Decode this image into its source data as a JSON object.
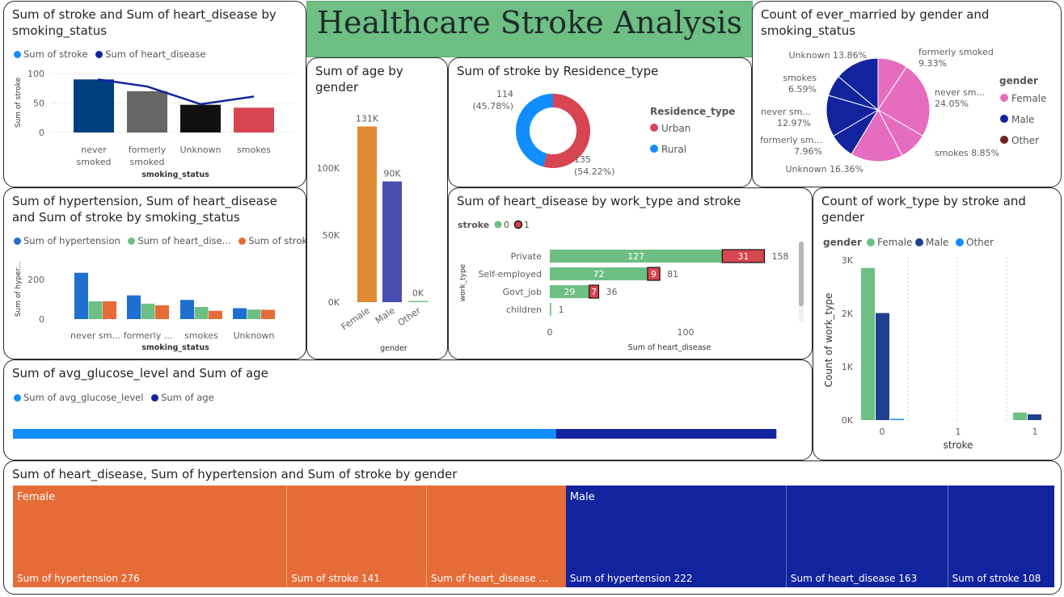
{
  "page": {
    "title": "Healthcare Stroke Analysis"
  },
  "colors": {
    "light_blue": "#118dff",
    "navy": "#12239e",
    "orange": "#e66c37",
    "green": "#6dbf84",
    "red": "#d64550",
    "pink": "#e56cbf",
    "gray": "#666666",
    "black": "#111111",
    "dark_blue": "#003f7f",
    "dark_red": "#6b2323",
    "bar_orange": "#e08a32",
    "bar_purple": "#4a4db2"
  },
  "v1": {
    "title": "Sum of stroke and Sum of heart_disease by smoking_status",
    "legend": [
      "Sum of stroke",
      "Sum of heart_disease"
    ],
    "y_label": "Sum of stroke",
    "x_label": "smoking_status",
    "y_ticks": [
      "100",
      "50",
      "0"
    ],
    "categories": [
      "never smoked",
      "formerly smoked",
      "Unknown",
      "smokes"
    ],
    "cat_lines": [
      [
        "never",
        "smoked"
      ],
      [
        "formerly",
        "smoked"
      ],
      [
        "Unknown",
        ""
      ],
      [
        "smokes",
        ""
      ]
    ],
    "chart_data": {
      "type": "bar",
      "categories": [
        "never smoked",
        "formerly smoked",
        "Unknown",
        "smokes"
      ],
      "series": [
        {
          "name": "Sum of stroke",
          "type": "bar",
          "values": [
            90,
            70,
            47,
            42
          ]
        },
        {
          "name": "Sum of heart_disease",
          "type": "line",
          "values": [
            90,
            78,
            48,
            61
          ]
        }
      ],
      "ylim": [
        0,
        110
      ]
    }
  },
  "v2": {
    "title": "Sum of age by gender",
    "x_label": "gender",
    "y_ticks": [
      "100K",
      "50K",
      "0K"
    ],
    "data_labels": [
      "131K",
      "90K",
      "0K"
    ],
    "categories": [
      "Female",
      "Male",
      "Other"
    ],
    "chart_data": {
      "type": "bar",
      "categories": [
        "Female",
        "Male",
        "Other"
      ],
      "values": [
        131000,
        90000,
        0
      ],
      "ylim": [
        0,
        140000
      ]
    }
  },
  "v3": {
    "title": "Sum of stroke by Residence_type",
    "legend_title": "Residence_type",
    "legend": [
      "Urban",
      "Rural"
    ],
    "label_rural": [
      "114",
      "(45.78%)"
    ],
    "label_urban": [
      "135",
      "(54.22%)"
    ],
    "chart_data": {
      "type": "pie",
      "labels": [
        "Urban",
        "Rural"
      ],
      "values": [
        135,
        114
      ],
      "percent": [
        54.22,
        45.78
      ]
    }
  },
  "v4": {
    "title": "Count of ever_married by gender and smoking_status",
    "legend_title": "gender",
    "legend": [
      "Female",
      "Male",
      "Other"
    ],
    "slice_labels": [
      [
        "formerly smoked",
        "9.33%"
      ],
      [
        "never sm...",
        "24.05%"
      ],
      [
        "smokes 8.85%",
        ""
      ],
      [
        "Unknown 16.36%",
        ""
      ],
      [
        "formerly sm...",
        "7.96%"
      ],
      [
        "never sm...",
        "12.97%"
      ],
      [
        "smokes",
        "6.59%"
      ],
      [
        "Unknown 13.86%",
        ""
      ]
    ],
    "chart_data": {
      "type": "pie",
      "labels": [
        "Female formerly smoked",
        "Female never smoked",
        "Female smokes",
        "Female Unknown",
        "Male formerly smoked",
        "Male never smoked",
        "Male smokes",
        "Male Unknown"
      ],
      "values": [
        9.33,
        24.05,
        8.85,
        16.36,
        7.96,
        12.97,
        6.59,
        13.86
      ]
    }
  },
  "v5": {
    "title": "Sum of hypertension, Sum of heart_disease and Sum of stroke by smoking_status",
    "legend": [
      "Sum of hypertension",
      "Sum of heart_dise...",
      "Sum of stroke"
    ],
    "y_label": "Sum of hyper...",
    "x_label": "smoking_status",
    "y_ticks": [
      "200",
      "0"
    ],
    "categories": [
      "never sm...",
      "formerly ...",
      "smokes",
      "Unknown"
    ],
    "chart_data": {
      "type": "bar",
      "categories": [
        "never smoked",
        "formerly smoked",
        "smokes",
        "Unknown"
      ],
      "series": [
        {
          "name": "Sum of hypertension",
          "values": [
            234,
            120,
            97,
            55
          ]
        },
        {
          "name": "Sum of heart_disease",
          "values": [
            90,
            78,
            61,
            48
          ]
        },
        {
          "name": "Sum of stroke",
          "values": [
            90,
            70,
            42,
            47
          ]
        }
      ],
      "ylim": [
        0,
        280
      ]
    }
  },
  "v6": {
    "title": "Sum of heart_disease by work_type and stroke",
    "legend_title": "stroke",
    "legend": [
      "0",
      "1"
    ],
    "y_label": "work_type",
    "x_label": "Sum of heart_disease",
    "x_ticks": [
      "0",
      "100"
    ],
    "categories": [
      "Private",
      "Self-employed",
      "Govt_job",
      "children"
    ],
    "seg_labels_0": [
      "127",
      "72",
      "29",
      ""
    ],
    "seg_labels_1": [
      "31",
      "9",
      "7",
      ""
    ],
    "totals": [
      "158",
      "81",
      "36",
      "1"
    ],
    "chart_data": {
      "type": "bar",
      "orientation": "horizontal",
      "stacked": true,
      "categories": [
        "Private",
        "Self-employed",
        "Govt_job",
        "children"
      ],
      "series": [
        {
          "name": "0",
          "values": [
            127,
            72,
            29,
            1
          ]
        },
        {
          "name": "1",
          "values": [
            31,
            9,
            7,
            0
          ]
        }
      ],
      "xlim": [
        0,
        185
      ]
    }
  },
  "v7": {
    "title": "Count of work_type by stroke and gender",
    "legend_title": "gender",
    "legend": [
      "Female",
      "Male",
      "Other"
    ],
    "y_label": "Count of work_type",
    "x_label": "stroke",
    "y_ticks": [
      "3K",
      "2K",
      "1K",
      "0K"
    ],
    "x_ticks": [
      "0",
      "1",
      "1"
    ],
    "chart_data": {
      "type": "bar",
      "categories": [
        "0",
        "1"
      ],
      "series": [
        {
          "name": "Female",
          "values": [
            2853,
            141
          ]
        },
        {
          "name": "Male",
          "values": [
            2007,
            108
          ]
        },
        {
          "name": "Other",
          "values": [
            15,
            0
          ]
        }
      ],
      "ylim": [
        0,
        3000
      ]
    }
  },
  "v8": {
    "title": "Sum of avg_glucose_level and Sum of age",
    "legend": [
      "Sum of avg_glucose_level",
      "Sum of age"
    ],
    "chart_data": {
      "type": "bar",
      "orientation": "horizontal",
      "stacked": true,
      "series": [
        {
          "name": "Sum of avg_glucose_level",
          "values": [
            0.707
          ]
        },
        {
          "name": "Sum of age",
          "values": [
            0.287
          ]
        }
      ]
    }
  },
  "v9": {
    "title": "Sum of heart_disease, Sum of hypertension and Sum of stroke by gender",
    "groups": [
      {
        "name": "Female",
        "cells": [
          {
            "label": "Sum of hypertension 276",
            "value": 276
          },
          {
            "label": "Sum of stroke 141",
            "value": 141
          },
          {
            "label": "Sum of heart_disease ...",
            "value": 141
          }
        ]
      },
      {
        "name": "Male",
        "cells": [
          {
            "label": "Sum of hypertension 222",
            "value": 222
          },
          {
            "label": "Sum of heart_disease 163",
            "value": 163
          },
          {
            "label": "Sum of stroke 108",
            "value": 108
          }
        ]
      }
    ],
    "chart_data": {
      "type": "treemap",
      "categories": [
        "Female",
        "Male"
      ],
      "series": [
        {
          "name": "Sum of hypertension",
          "values": [
            276,
            222
          ]
        },
        {
          "name": "Sum of heart_disease",
          "values": [
            141,
            163
          ]
        },
        {
          "name": "Sum of stroke",
          "values": [
            141,
            108
          ]
        }
      ]
    }
  }
}
